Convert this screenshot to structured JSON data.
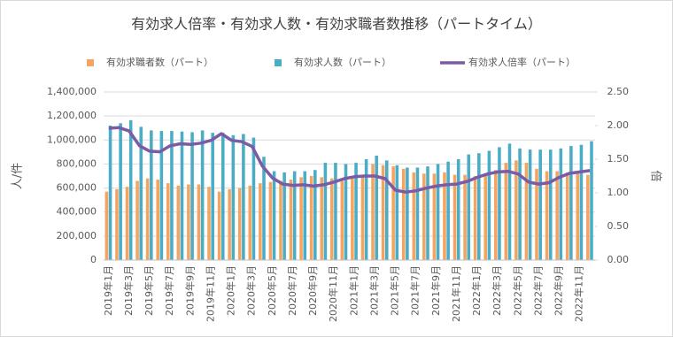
{
  "chart_data": {
    "type": "combo",
    "title": "有効求人倍率・有効求人数・有効求職者数推移（パートタイム）",
    "y_label": "人/件",
    "y2_label": "倍",
    "categories": [
      "2019年1月",
      null,
      "2019年3月",
      null,
      "2019年5月",
      null,
      "2019年7月",
      null,
      "2019年9月",
      null,
      "2019年11月",
      null,
      "2020年1月",
      null,
      "2020年3月",
      null,
      "2020年5月",
      null,
      "2020年7月",
      null,
      "2020年9月",
      null,
      "2020年11月",
      null,
      "2021年1月",
      null,
      "2021年3月",
      null,
      "2021年5月",
      null,
      "2021年7月",
      null,
      "2021年9月",
      null,
      "2021年11月",
      null,
      "2022年1月",
      null,
      "2022年3月",
      null,
      "2022年5月",
      null,
      "2022年7月",
      null,
      "2022年9月",
      null,
      "2022年11月",
      null
    ],
    "series": [
      {
        "name": "有効求職者数（パート）",
        "type": "bar",
        "color": "#f4a460",
        "values": [
          570000,
          590000,
          610000,
          660000,
          680000,
          670000,
          640000,
          620000,
          630000,
          630000,
          610000,
          570000,
          590000,
          600000,
          620000,
          640000,
          650000,
          660000,
          670000,
          690000,
          700000,
          690000,
          680000,
          660000,
          680000,
          700000,
          800000,
          790000,
          780000,
          760000,
          730000,
          720000,
          720000,
          730000,
          710000,
          710000,
          700000,
          720000,
          750000,
          810000,
          830000,
          810000,
          760000,
          740000,
          740000,
          730000,
          720000,
          710000
        ]
      },
      {
        "name": "有効求人数（パート）",
        "type": "bar",
        "color": "#4bacc6",
        "values": [
          1120000,
          1140000,
          1165000,
          1110000,
          1080000,
          1075000,
          1075000,
          1070000,
          1065000,
          1080000,
          1060000,
          1060000,
          1040000,
          1050000,
          1020000,
          860000,
          740000,
          730000,
          740000,
          740000,
          750000,
          810000,
          810000,
          800000,
          810000,
          840000,
          870000,
          830000,
          790000,
          770000,
          770000,
          780000,
          800000,
          820000,
          840000,
          880000,
          890000,
          910000,
          940000,
          970000,
          930000,
          920000,
          920000,
          920000,
          930000,
          950000,
          960000,
          990000
        ]
      },
      {
        "name": "有効求人倍率（パート）",
        "type": "line",
        "axis": "y2",
        "color": "#7b5aa6",
        "values": [
          1.96,
          1.97,
          1.92,
          1.7,
          1.62,
          1.61,
          1.7,
          1.73,
          1.72,
          1.74,
          1.78,
          1.88,
          1.78,
          1.76,
          1.69,
          1.4,
          1.22,
          1.13,
          1.11,
          1.12,
          1.1,
          1.12,
          1.16,
          1.21,
          1.24,
          1.25,
          1.25,
          1.21,
          1.04,
          1.01,
          1.03,
          1.07,
          1.1,
          1.12,
          1.13,
          1.17,
          1.23,
          1.28,
          1.31,
          1.32,
          1.28,
          1.16,
          1.13,
          1.15,
          1.23,
          1.29,
          1.31,
          1.33
        ]
      }
    ],
    "ylim": [
      0,
      1400000
    ],
    "yticks": [
      0,
      {
        "value": 200000,
        "label": "200,000"
      },
      {
        "value": 400000,
        "label": "400,000"
      },
      {
        "value": 600000,
        "label": "600,000"
      },
      {
        "value": 800000,
        "label": "800,000"
      },
      {
        "value": 1000000,
        "label": "1,000,000"
      },
      {
        "value": 1200000,
        "label": "1,200,000"
      },
      {
        "value": 1400000,
        "label": "1,400,000"
      }
    ],
    "y2lim": [
      0,
      2.5
    ],
    "y2ticks": [
      {
        "value": 0,
        "label": "0.00"
      },
      {
        "value": 0.5,
        "label": "0.50"
      },
      {
        "value": 1,
        "label": "1.00"
      },
      {
        "value": 1.5,
        "label": "1.50"
      },
      {
        "value": 2,
        "label": "2.00"
      },
      {
        "value": 2.5,
        "label": "2.50"
      }
    ],
    "grid": true,
    "legend": "top"
  }
}
